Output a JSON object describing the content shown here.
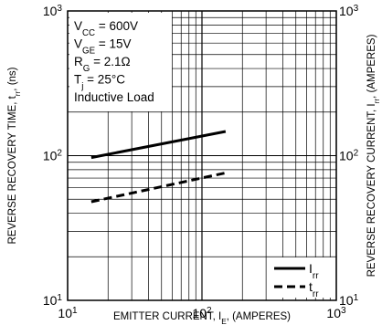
{
  "chart_data": {
    "type": "line",
    "xscale": "log",
    "yscale": "log",
    "xlim": [
      10,
      1000
    ],
    "ylim": [
      10,
      1000
    ],
    "y2lim": [
      10,
      1000
    ],
    "grid": true,
    "xlabel": "EMITTER CURRENT, I",
    "xlabel_sub": "E",
    "xlabel_tail": ", (AMPERES)",
    "ylabel": "REVERSE RECOVERY TIME, t",
    "ylabel_sub": "rr",
    "ylabel_tail": ", (ns)",
    "y2label": "REVERSE RECOVERY CURRENT, I",
    "y2label_sub": "rr",
    "y2label_tail": ", (AMPERES)",
    "xticks": [
      {
        "value": 10,
        "base": "10",
        "exp": "1"
      },
      {
        "value": 100,
        "base": "10",
        "exp": "2"
      },
      {
        "value": 1000,
        "base": "10",
        "exp": "3"
      }
    ],
    "yticks": [
      {
        "value": 10,
        "base": "10",
        "exp": "1"
      },
      {
        "value": 100,
        "base": "10",
        "exp": "2"
      },
      {
        "value": 1000,
        "base": "10",
        "exp": "3"
      }
    ],
    "conditions": [
      {
        "main": "V",
        "sub": "CC",
        "tail": " = 600V"
      },
      {
        "main": "V",
        "sub": "GE",
        "tail": " = 15V"
      },
      {
        "main": "R",
        "sub": "G",
        "tail": " = 2.1Ω"
      },
      {
        "main": "T",
        "sub": "j",
        "tail": " = 25°C"
      },
      {
        "main": "Inductive Load",
        "sub": "",
        "tail": ""
      }
    ],
    "legend_position": "bottom-right",
    "series": [
      {
        "name": "I",
        "name_sub": "rr",
        "style": "solid",
        "x": [
          15,
          150
        ],
        "y": [
          97,
          147
        ],
        "color": "#000000"
      },
      {
        "name": "t",
        "name_sub": "rr",
        "style": "dashed",
        "x": [
          15,
          150
        ],
        "y": [
          48,
          76
        ],
        "color": "#000000"
      }
    ]
  }
}
